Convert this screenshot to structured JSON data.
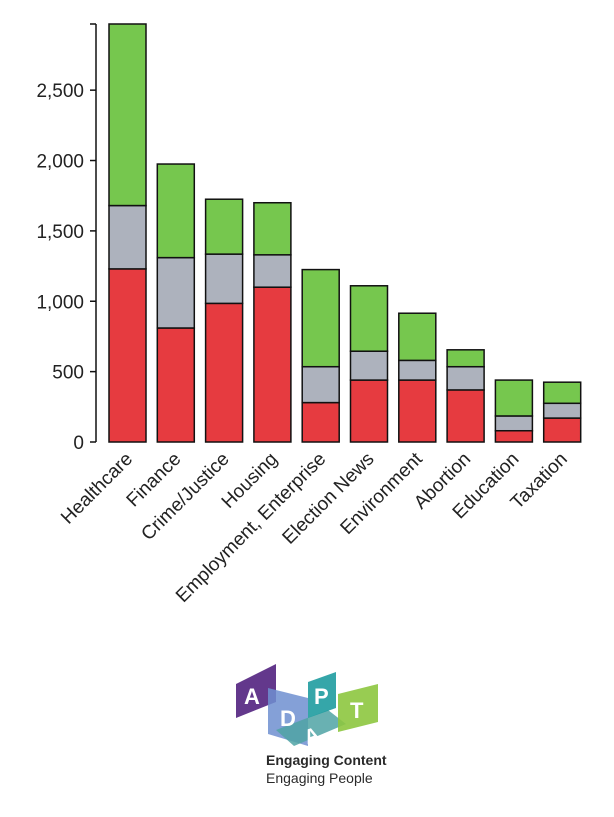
{
  "chart_data": {
    "type": "bar",
    "stacked": true,
    "categories": [
      "Healthcare",
      "Finance",
      "Crime/Justice",
      "Housing",
      "Employment, Enterprise",
      "Election News",
      "Environment",
      "Abortion",
      "Education",
      "Taxation"
    ],
    "series": [
      {
        "color": "#e63b40",
        "values": [
          1230,
          810,
          985,
          1100,
          280,
          440,
          440,
          370,
          80,
          170
        ]
      },
      {
        "color": "#adb2bd",
        "values": [
          450,
          500,
          350,
          230,
          255,
          205,
          140,
          165,
          105,
          105
        ]
      },
      {
        "color": "#76c74e",
        "values": [
          1290,
          665,
          390,
          370,
          690,
          465,
          335,
          120,
          255,
          150
        ]
      }
    ],
    "yticks": [
      0,
      500,
      1000,
      1500,
      2000,
      2500
    ],
    "ytick_labels": [
      "0",
      "500",
      "1,000",
      "1,500",
      "2,000",
      "2,500"
    ],
    "ylim": [
      0,
      2970
    ],
    "grid": false,
    "xlabel": "",
    "ylabel": ""
  },
  "logo": {
    "letters": [
      "A",
      "D",
      "P",
      "A",
      "T"
    ],
    "tagline_1": "Engaging Content",
    "tagline_2": "Engaging People",
    "colors": [
      "#5b2d86",
      "#6f8fd0",
      "#4fa3a5",
      "#8dc63f"
    ]
  }
}
